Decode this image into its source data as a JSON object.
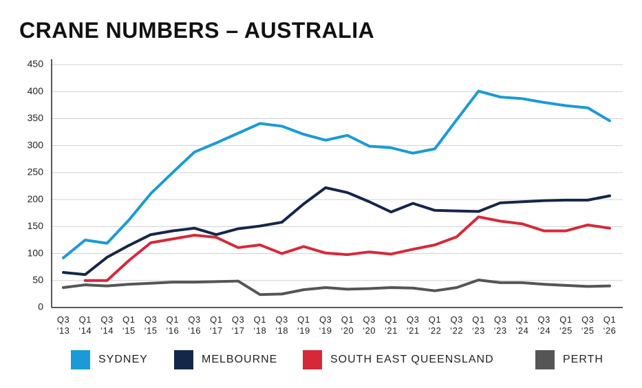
{
  "chart_data": {
    "type": "line",
    "title": "CRANE NUMBERS – AUSTRALIA",
    "categories": [
      "Q3 ‘13",
      "Q1 ‘14",
      "Q3 ‘14",
      "Q1 ‘15",
      "Q3 ‘15",
      "Q1 ‘16",
      "Q3 ‘16",
      "Q1 ‘17",
      "Q3 ‘17",
      "Q1 ‘18",
      "Q3 ‘18",
      "Q1 ‘19",
      "Q3 ‘19",
      "Q1 ‘20",
      "Q3 ‘20",
      "Q1 ‘21",
      "Q3 ‘21",
      "Q1 ‘22",
      "Q3 ‘22",
      "Q1 ‘23",
      "Q3 ‘23",
      "Q1 ‘24",
      "Q3 ‘24",
      "Q1 ‘25",
      "Q3 ‘25",
      "Q1 ‘26"
    ],
    "series": [
      {
        "name": "SYDNEY",
        "color": "#1a9ad6",
        "values": [
          92,
          125,
          119,
          162,
          211,
          250,
          288,
          305,
          323,
          341,
          336,
          321,
          310,
          319,
          299,
          296,
          286,
          294,
          348,
          401,
          390,
          387,
          380,
          374,
          370,
          346
        ]
      },
      {
        "name": "MELBOURNE",
        "color": "#14264a",
        "values": [
          65,
          61,
          93,
          115,
          135,
          142,
          147,
          135,
          146,
          151,
          158,
          192,
          222,
          213,
          196,
          177,
          193,
          180,
          179,
          178,
          194,
          196,
          198,
          199,
          199,
          207
        ]
      },
      {
        "name": "SOUTH EAST QUEENSLAND",
        "color": "#d62839",
        "values": [
          null,
          50,
          50,
          87,
          120,
          127,
          134,
          130,
          111,
          116,
          100,
          113,
          101,
          98,
          103,
          99,
          108,
          116,
          131,
          168,
          160,
          155,
          142,
          142,
          153,
          147
        ]
      },
      {
        "name": "PERTH",
        "color": "#555555",
        "values": [
          37,
          42,
          40,
          43,
          45,
          47,
          47,
          48,
          49,
          24,
          25,
          33,
          37,
          34,
          35,
          37,
          36,
          31,
          37,
          51,
          46,
          46,
          43,
          41,
          39,
          40
        ]
      }
    ],
    "ylim": [
      0,
      450
    ],
    "yticks": [
      0,
      50,
      100,
      150,
      200,
      250,
      300,
      350,
      400,
      450
    ],
    "grid": true
  }
}
